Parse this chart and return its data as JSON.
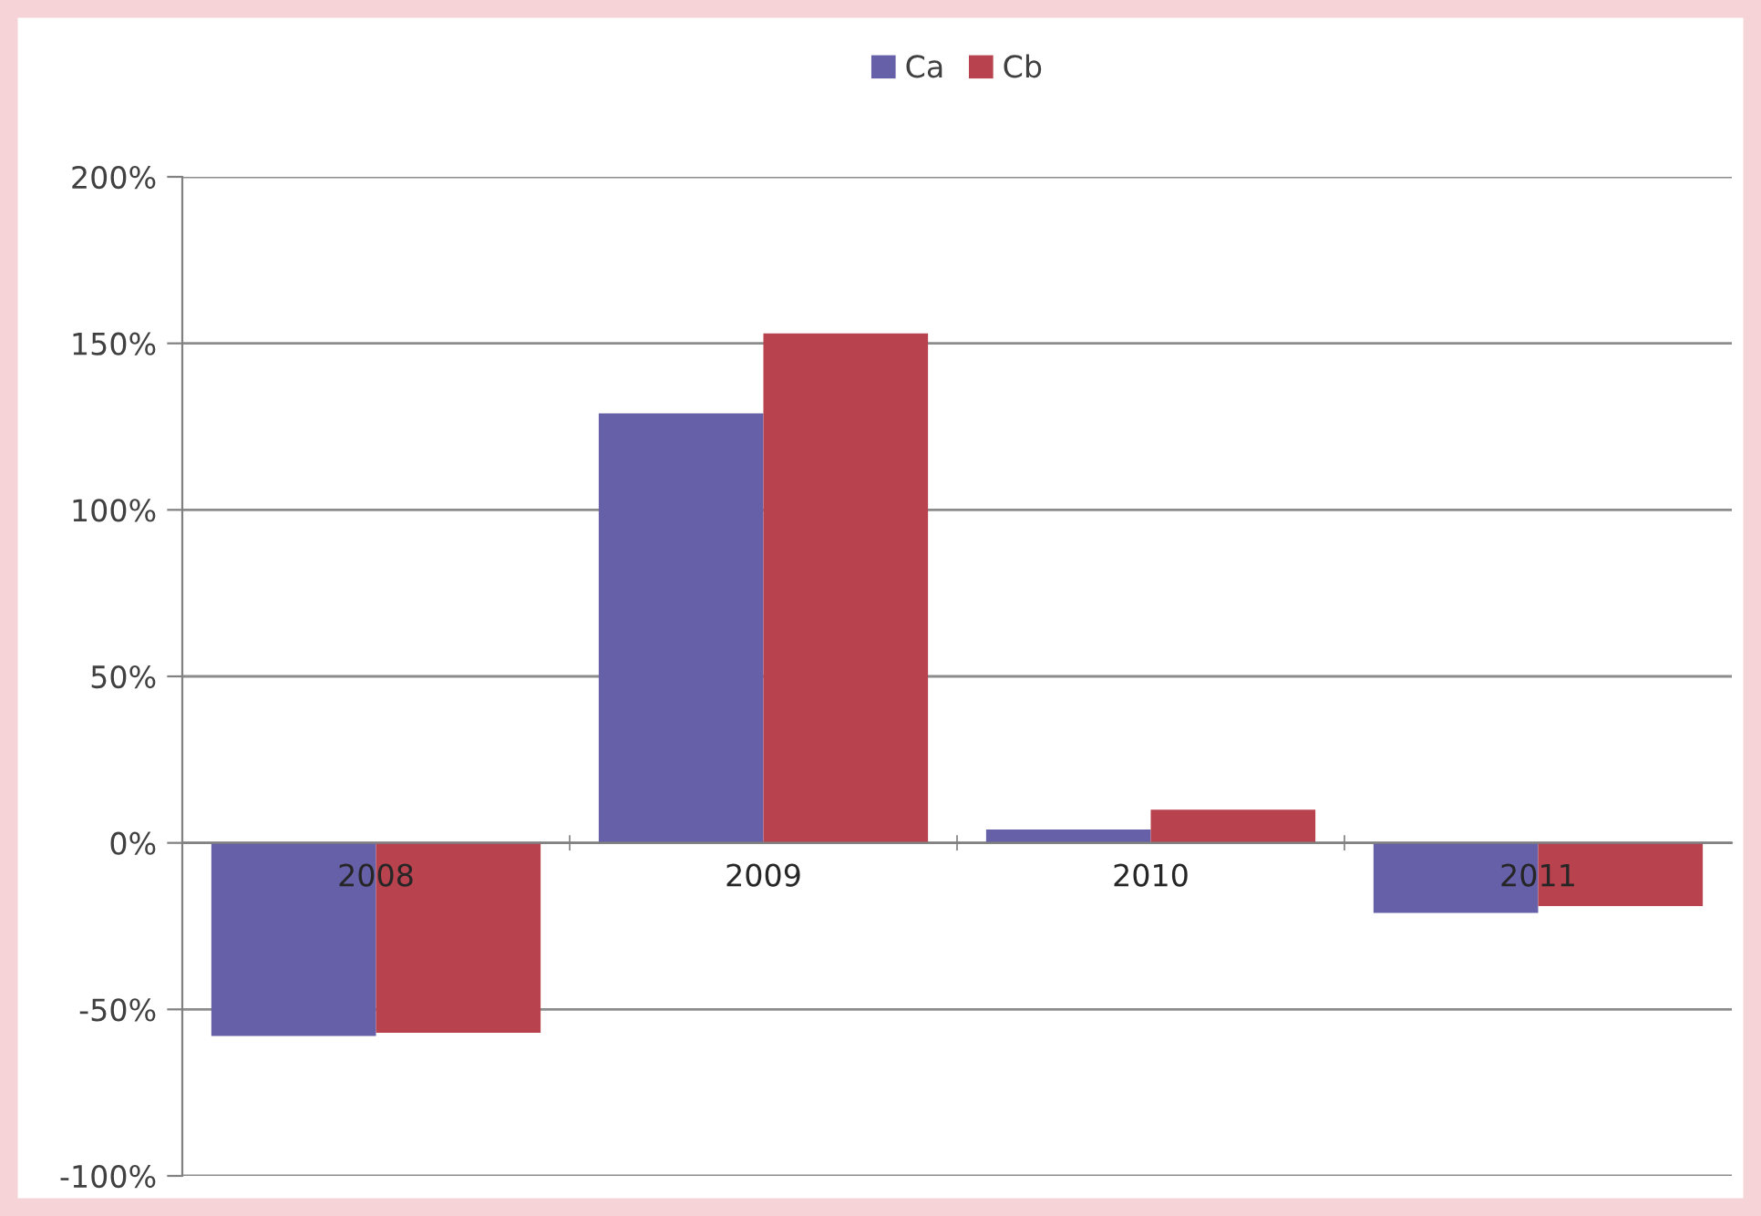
{
  "chart_data": {
    "type": "bar",
    "categories": [
      "2008",
      "2009",
      "2010",
      "2011"
    ],
    "series": [
      {
        "name": "Ca",
        "color": "#6660a8",
        "values": [
          -58,
          129,
          4,
          -21
        ]
      },
      {
        "name": "Cb",
        "color": "#b8434f",
        "values": [
          -57,
          153,
          10,
          -19
        ]
      }
    ],
    "ylim": [
      -100,
      200
    ],
    "yticks": [
      {
        "value": -100,
        "label": "-100%"
      },
      {
        "value": -50,
        "label": "-50%"
      },
      {
        "value": 0,
        "label": "0%"
      },
      {
        "value": 50,
        "label": "50%"
      },
      {
        "value": 100,
        "label": "100%"
      },
      {
        "value": 150,
        "label": "150%"
      },
      {
        "value": 200,
        "label": "200%"
      }
    ],
    "grid": "y",
    "legend": "top"
  }
}
